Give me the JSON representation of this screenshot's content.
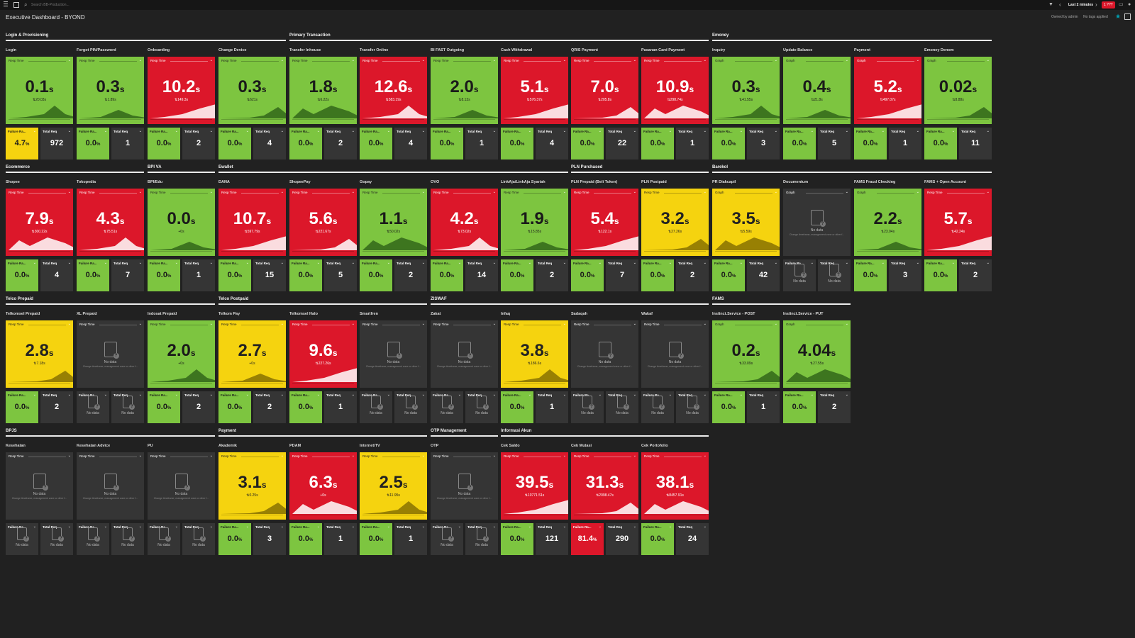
{
  "topbar": {
    "search_placeholder": "Search BB-Production...",
    "timeframe": "Last 2 minutes",
    "alert_badge": "1 ???",
    "filter_icon": "filter-icon",
    "prev_icon": "chevron-left-icon",
    "next_icon": "chevron-right-icon"
  },
  "dashboard": {
    "title": "Executive Dashboard - BYOND",
    "owner": "Owned by admin",
    "tags": "No tags applied"
  },
  "colors": {
    "green": "#7dc540",
    "red": "#dc172a",
    "yellow": "#f5d30f",
    "dark": "#353535",
    "background": "#212121",
    "accent": "#00a1b2"
  },
  "groups": [
    {
      "title": "Login & Provisioning"
    },
    {
      "title": "Primary Transaction"
    },
    {
      "title": "Emoney"
    },
    {
      "title": "Ecommerce"
    },
    {
      "title": "BPI VA"
    },
    {
      "title": "Ewallet"
    },
    {
      "title": "PLN Purchased"
    },
    {
      "title": "Barekol"
    },
    {
      "title": "Telco Prepaid"
    },
    {
      "title": "Telco Postpaid"
    },
    {
      "title": "ZISWAF"
    },
    {
      "title": "FAMS"
    },
    {
      "title": "BPJS"
    },
    {
      "title": "Payment"
    },
    {
      "title": "OTP Management"
    },
    {
      "title": "Informasi Akun"
    }
  ],
  "strings": {
    "resp_time": "Resp Time",
    "graph": "Graph",
    "failure": "Failure Ra...",
    "total_req": "Total Req",
    "no_data": "No data",
    "no_data_hint": "Change timeframe, management zone or other f..."
  },
  "tiles": [
    {
      "title": "Login",
      "label": "Resp Time",
      "status": "green",
      "value": "0.1",
      "unit": "s",
      "sub": "⇅20.03s",
      "failure": {
        "value": "4.7",
        "unit": "%",
        "status": "yellow"
      },
      "total": "972"
    },
    {
      "title": "Forgot PIN/Password",
      "label": "Resp Time",
      "status": "green",
      "value": "0.3",
      "unit": "s",
      "sub": "⇅1.89s",
      "failure": {
        "value": "0.0",
        "unit": "%",
        "status": "green"
      },
      "total": "1"
    },
    {
      "title": "Onboarding",
      "label": "Resp Time",
      "status": "red",
      "value": "10.2",
      "unit": "s",
      "sub": "⇅149.3s",
      "failure": {
        "value": "0.0",
        "unit": "%",
        "status": "green"
      },
      "total": "2"
    },
    {
      "title": "Change Device",
      "label": "Resp Time",
      "status": "green",
      "value": "0.3",
      "unit": "s",
      "sub": "⇅621s",
      "failure": {
        "value": "0.0",
        "unit": "%",
        "status": "green"
      },
      "total": "4"
    },
    {
      "title": "Transfer Inhouse",
      "label": "Resp Time",
      "status": "green",
      "value": "1.8",
      "unit": "s",
      "sub": "⇅6.22s",
      "failure": {
        "value": "0.0",
        "unit": "%",
        "status": "green"
      },
      "total": "2"
    },
    {
      "title": "Transfer Online",
      "label": "Resp Time",
      "status": "red",
      "value": "12.6",
      "unit": "s",
      "sub": "⇅583.19s",
      "failure": {
        "value": "0.0",
        "unit": "%",
        "status": "green"
      },
      "total": "4"
    },
    {
      "title": "BI FAST Outgoing",
      "label": "Resp Time",
      "status": "green",
      "value": "2.0",
      "unit": "s",
      "sub": "⇅8.13s",
      "failure": {
        "value": "0.0",
        "unit": "%",
        "status": "green"
      },
      "total": "1"
    },
    {
      "title": "Cash Withdrawal",
      "label": "Resp Time",
      "status": "red",
      "value": "5.1",
      "unit": "s",
      "sub": "⇅576.37s",
      "failure": {
        "value": "0.0",
        "unit": "%",
        "status": "green"
      },
      "total": "4"
    },
    {
      "title": "QRIS Payment",
      "label": "Resp Time",
      "status": "red",
      "value": "7.0",
      "unit": "s",
      "sub": "⇅205.8s",
      "failure": {
        "value": "0.0",
        "unit": "%",
        "status": "green"
      },
      "total": "22"
    },
    {
      "title": "Pasanan Card Payment",
      "label": "Resp Time",
      "status": "red",
      "value": "10.9",
      "unit": "s",
      "sub": "⇅298.74s",
      "failure": {
        "value": "0.0",
        "unit": "%",
        "status": "green"
      },
      "total": "1"
    },
    {
      "title": "Inquiry",
      "label": "Graph",
      "status": "green",
      "value": "0.3",
      "unit": "s",
      "sub": "⇅41.55s",
      "failure": {
        "value": "0.0",
        "unit": "%",
        "status": "green"
      },
      "total": "3"
    },
    {
      "title": "Update Balance",
      "label": "Graph",
      "status": "green",
      "value": "0.4",
      "unit": "s",
      "sub": "⇅21.8s",
      "failure": {
        "value": "0.0",
        "unit": "%",
        "status": "green"
      },
      "total": "5"
    },
    {
      "title": "Payment",
      "label": "Graph",
      "status": "red",
      "value": "5.2",
      "unit": "s",
      "sub": "⇅497.07s",
      "failure": {
        "value": "0.0",
        "unit": "%",
        "status": "green"
      },
      "total": "1"
    },
    {
      "title": "Emoney Denom",
      "label": "Graph",
      "status": "green",
      "value": "0.02",
      "unit": "s",
      "sub": "⇅8.88s",
      "failure": {
        "value": "0.0",
        "unit": "%",
        "status": "green"
      },
      "total": "11"
    },
    {
      "title": "Shopee",
      "label": "Resp Time",
      "status": "red",
      "value": "7.9",
      "unit": "s",
      "sub": "⇅300.22s",
      "failure": {
        "value": "0.0",
        "unit": "%",
        "status": "green"
      },
      "total": "4"
    },
    {
      "title": "Tokopedia",
      "label": "Resp Time",
      "status": "red",
      "value": "4.3",
      "unit": "s",
      "sub": "⇅75.51s",
      "failure": {
        "value": "0.0",
        "unit": "%",
        "status": "green"
      },
      "total": "7"
    },
    {
      "title": "BPI/Edu",
      "label": "Resp Time",
      "status": "green",
      "value": "0.0",
      "unit": "s",
      "sub": "+0s",
      "failure": {
        "value": "0.0",
        "unit": "%",
        "status": "green"
      },
      "total": "1"
    },
    {
      "title": "DANA",
      "label": "Resp Time",
      "status": "red",
      "value": "10.7",
      "unit": "s",
      "sub": "⇅597.79s",
      "failure": {
        "value": "0.0",
        "unit": "%",
        "status": "green"
      },
      "total": "15"
    },
    {
      "title": "ShopeePay",
      "label": "Resp Time",
      "status": "red",
      "value": "5.6",
      "unit": "s",
      "sub": "⇅221.67s",
      "failure": {
        "value": "0.0",
        "unit": "%",
        "status": "green"
      },
      "total": "5"
    },
    {
      "title": "Gopay",
      "label": "Resp Time",
      "status": "green",
      "value": "1.1",
      "unit": "s",
      "sub": "⇅50.02s",
      "failure": {
        "value": "0.0",
        "unit": "%",
        "status": "green"
      },
      "total": "2"
    },
    {
      "title": "OVO",
      "label": "Resp Time",
      "status": "red",
      "value": "4.2",
      "unit": "s",
      "sub": "⇅73.02s",
      "failure": {
        "value": "0.0",
        "unit": "%",
        "status": "green"
      },
      "total": "14"
    },
    {
      "title": "LinkAja/LinkAja Syariah",
      "label": "Resp Time",
      "status": "green",
      "value": "1.9",
      "unit": "s",
      "sub": "⇅15.85s",
      "failure": {
        "value": "0.0",
        "unit": "%",
        "status": "green"
      },
      "total": "2"
    },
    {
      "title": "PLN Prepaid (Beli Token)",
      "label": "Resp Time",
      "status": "red",
      "value": "5.4",
      "unit": "s",
      "sub": "⇅122.1s",
      "failure": {
        "value": "0.0",
        "unit": "%",
        "status": "green"
      },
      "total": "7"
    },
    {
      "title": "PLN Postpaid",
      "label": "Resp Time",
      "status": "yellow",
      "value": "3.2",
      "unit": "s",
      "sub": "⇅27.26s",
      "failure": {
        "value": "0.0",
        "unit": "%",
        "status": "green"
      },
      "total": "2"
    },
    {
      "title": "PR Diakcapil",
      "label": "Graph",
      "status": "yellow",
      "value": "3.5",
      "unit": "s",
      "sub": "⇅5.59s",
      "failure": {
        "value": "0.0",
        "unit": "%",
        "status": "green"
      },
      "total": "42"
    },
    {
      "title": "Documentum",
      "label": "Graph",
      "status": "dark",
      "nodata": true,
      "failure": {
        "nodata": true
      },
      "total_nodata": true
    },
    {
      "title": "FAMS Fraud Checking",
      "label": "Graph",
      "status": "green",
      "value": "2.2",
      "unit": "s",
      "sub": "⇅23.04s",
      "failure": {
        "value": "0.0",
        "unit": "%",
        "status": "green"
      },
      "total": "3"
    },
    {
      "title": "FAMS + Open Account",
      "label": "Resp Time",
      "status": "red",
      "value": "5.7",
      "unit": "s",
      "sub": "⇅42.24s",
      "failure": {
        "value": "0.0",
        "unit": "%",
        "status": "green"
      },
      "total": "2"
    },
    {
      "title": "Telkomsel Prepaid",
      "label": "Resp Time",
      "status": "yellow",
      "value": "2.8",
      "unit": "s",
      "sub": "⇅7.18s",
      "failure": {
        "value": "0.0",
        "unit": "%",
        "status": "green"
      },
      "total": "2"
    },
    {
      "title": "XL Prepaid",
      "label": "Resp Time",
      "status": "dark",
      "nodata": true,
      "failure": {
        "nodata": true
      },
      "total_nodata": true
    },
    {
      "title": "Indosat Prepaid",
      "label": "Resp Time",
      "status": "green",
      "value": "2.0",
      "unit": "s",
      "sub": "+0s",
      "failure": {
        "value": "0.0",
        "unit": "%",
        "status": "green"
      },
      "total": "2"
    },
    {
      "title": "Telkom Pay",
      "label": "Resp Time",
      "status": "yellow",
      "value": "2.7",
      "unit": "s",
      "sub": "+0s",
      "failure": {
        "value": "0.0",
        "unit": "%",
        "status": "green"
      },
      "total": "2"
    },
    {
      "title": "Telkomsel Halo",
      "label": "Resp Time",
      "status": "red",
      "value": "9.6",
      "unit": "s",
      "sub": "⇅227.26s",
      "failure": {
        "value": "0.0",
        "unit": "%",
        "status": "green"
      },
      "total": "1"
    },
    {
      "title": "Smartfren",
      "label": "Resp Time",
      "status": "dark",
      "nodata": true,
      "failure": {
        "nodata": true
      },
      "total_nodata": true
    },
    {
      "title": "Zakat",
      "label": "Resp Time",
      "status": "dark",
      "nodata": true,
      "failure": {
        "nodata": true
      },
      "total_nodata": true
    },
    {
      "title": "Infaq",
      "label": "Resp Time",
      "status": "yellow",
      "value": "3.8",
      "unit": "s",
      "sub": "⇅186.6s",
      "failure": {
        "value": "0.0",
        "unit": "%",
        "status": "green"
      },
      "total": "1"
    },
    {
      "title": "Sadaqah",
      "label": "Resp Time",
      "status": "dark",
      "nodata": true,
      "failure": {
        "nodata": true
      },
      "total_nodata": true
    },
    {
      "title": "Wakaf",
      "label": "Resp Time",
      "status": "dark",
      "nodata": true,
      "failure": {
        "nodata": true
      },
      "total_nodata": true
    },
    {
      "title": "Instinct.Service - POST",
      "label": "Graph",
      "status": "green",
      "value": "0.2",
      "unit": "s",
      "sub": "⇅33.09s",
      "failure": {
        "value": "0.0",
        "unit": "%",
        "status": "green"
      },
      "total": "1"
    },
    {
      "title": "Instinct.Service - PUT",
      "label": "Graph",
      "status": "green",
      "value": "4.04",
      "unit": "s",
      "sub": "⇅27.55s",
      "failure": {
        "value": "0.0",
        "unit": "%",
        "status": "green"
      },
      "total": "2"
    },
    {
      "title": "Kesehatan",
      "label": "Resp Time",
      "status": "dark",
      "nodata": true,
      "failure": {
        "nodata": true
      },
      "total_nodata": true
    },
    {
      "title": "Kesehatan Advice",
      "label": "Resp Time",
      "status": "dark",
      "nodata": true,
      "failure": {
        "nodata": true
      },
      "total_nodata": true
    },
    {
      "title": "PU",
      "label": "Resp Time",
      "status": "dark",
      "nodata": true,
      "failure": {
        "nodata": true
      },
      "total_nodata": true
    },
    {
      "title": "Akademik",
      "label": "Resp Time",
      "status": "yellow",
      "value": "3.1",
      "unit": "s",
      "sub": "⇅0.25s",
      "failure": {
        "value": "0.0",
        "unit": "%",
        "status": "green"
      },
      "total": "3"
    },
    {
      "title": "PDAM",
      "label": "Resp Time",
      "status": "red",
      "value": "6.3",
      "unit": "s",
      "sub": "+0s",
      "failure": {
        "value": "0.0",
        "unit": "%",
        "status": "green"
      },
      "total": "1"
    },
    {
      "title": "Internet/TV",
      "label": "Resp Time",
      "status": "yellow",
      "value": "2.5",
      "unit": "s",
      "sub": "⇅11.95s",
      "failure": {
        "value": "0.0",
        "unit": "%",
        "status": "green"
      },
      "total": "1"
    },
    {
      "title": "OTP",
      "label": "Resp Time",
      "status": "dark",
      "nodata": true,
      "failure": {
        "nodata": true
      },
      "total_nodata": true
    },
    {
      "title": "Cek Saldo",
      "label": "Resp Time",
      "status": "red",
      "value": "39.5",
      "unit": "s",
      "sub": "⇅10771.51s",
      "failure": {
        "value": "0.0",
        "unit": "%",
        "status": "green"
      },
      "total": "121"
    },
    {
      "title": "Cek Mutasi",
      "label": "Resp Time",
      "status": "red",
      "value": "31.3",
      "unit": "s",
      "sub": "⇅2098.47s",
      "failure": {
        "value": "81.4",
        "unit": "%",
        "status": "red"
      },
      "total": "290"
    },
    {
      "title": "Cek Portofolio",
      "label": "Resp Time",
      "status": "red",
      "value": "38.1",
      "unit": "s",
      "sub": "⇅8457.91s",
      "failure": {
        "value": "0.0",
        "unit": "%",
        "status": "green"
      },
      "total": "24"
    }
  ]
}
